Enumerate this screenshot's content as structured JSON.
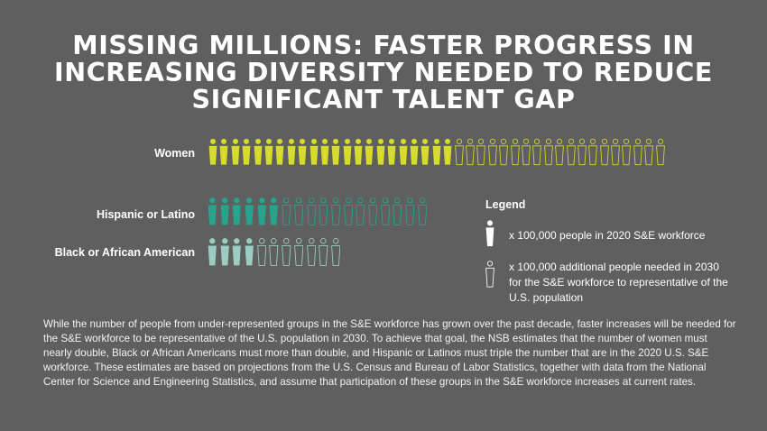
{
  "title": [
    "MISSING MILLIONS: FASTER PROGRESS IN",
    "INCREASING DIVERSITY NEEDED TO REDUCE",
    "SIGNIFICANT TALENT GAP"
  ],
  "chart_data": {
    "type": "pictogram",
    "unit": "100,000 people",
    "series": [
      {
        "name": "Women",
        "workforce_2020": 22,
        "additional_needed_2030": 19,
        "color": "#d5dc2a"
      },
      {
        "name": "Hispanic or Latino",
        "workforce_2020": 6,
        "additional_needed_2030": 12,
        "color": "#27a38e"
      },
      {
        "name": "Black or African American",
        "workforce_2020": 4,
        "additional_needed_2030": 7,
        "color": "#9ccdc3"
      }
    ]
  },
  "legend": {
    "title": "Legend",
    "filled": "x 100,000 people in 2020 S&E workforce",
    "outline": "x 100,000 additional people needed in 2030 for the S&E workforce to representative of the U.S. population"
  },
  "paragraph": "While the number of people from under-represented groups in the S&E workforce has grown over the past decade, faster increases will be needed for the S&E workforce to be representative of the U.S. population in 2030. To achieve that goal, the NSB estimates that the number of women must nearly double, Black or African Americans must more than double, and Hispanic or Latinos must triple the number that are in the 2020 U.S. S&E workforce. These estimates are based on projections from the U.S. Census and Bureau of Labor Statistics, together with data from the National Center for Science and Engineering Statistics, and assume that participation of these groups in the S&E workforce increases at current rates."
}
